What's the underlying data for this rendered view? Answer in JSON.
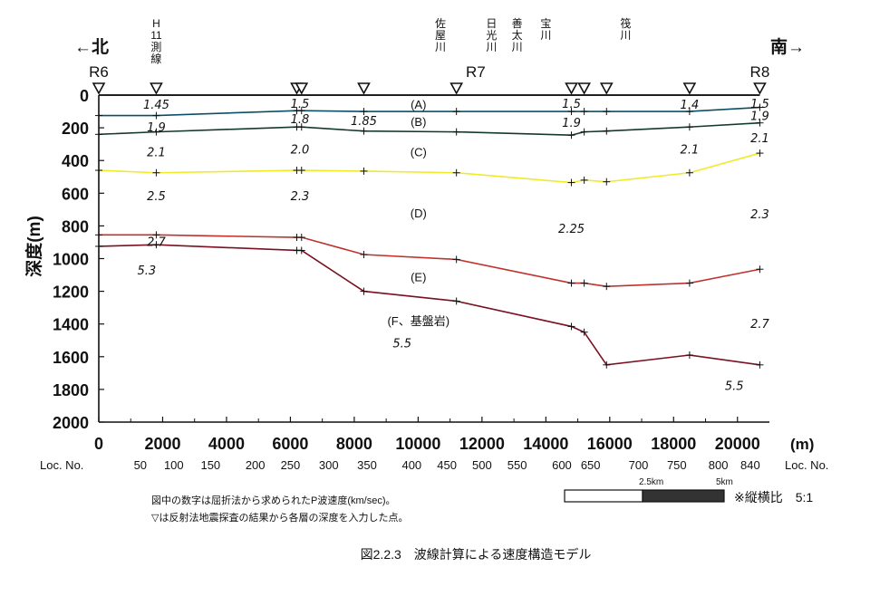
{
  "chart_data": {
    "type": "line",
    "title": "図2.2.3　波線計算による速度構造モデル",
    "ylabel": "深度(m)",
    "x_unit_label": "(m)",
    "xlim": [
      0,
      21000
    ],
    "ylim": [
      0,
      2000
    ],
    "y_inverted": true,
    "x_ticks": [
      0,
      2000,
      4000,
      6000,
      8000,
      10000,
      12000,
      14000,
      16000,
      18000,
      20000
    ],
    "y_ticks": [
      0,
      200,
      400,
      600,
      800,
      1000,
      1200,
      1400,
      1600,
      1800,
      2000
    ],
    "direction_left": "←北",
    "direction_right": "南→",
    "loc_label": "Loc. No.",
    "loc_ticks": [
      {
        "x": 1300,
        "label": "50"
      },
      {
        "x": 2350,
        "label": "100"
      },
      {
        "x": 3500,
        "label": "150"
      },
      {
        "x": 4900,
        "label": "200"
      },
      {
        "x": 6000,
        "label": "250"
      },
      {
        "x": 7200,
        "label": "300"
      },
      {
        "x": 8400,
        "label": "350"
      },
      {
        "x": 9800,
        "label": "400"
      },
      {
        "x": 10900,
        "label": "450"
      },
      {
        "x": 12000,
        "label": "500"
      },
      {
        "x": 13100,
        "label": "550"
      },
      {
        "x": 14500,
        "label": "600"
      },
      {
        "x": 15400,
        "label": "650"
      },
      {
        "x": 16900,
        "label": "700"
      },
      {
        "x": 18100,
        "label": "750"
      },
      {
        "x": 19400,
        "label": "800"
      },
      {
        "x": 20400,
        "label": "840"
      }
    ],
    "stations": [
      {
        "x": 0,
        "label": "R6"
      },
      {
        "x": 11800,
        "label": "R7"
      },
      {
        "x": 20700,
        "label": "R8"
      }
    ],
    "crossings": [
      {
        "x": 1800,
        "label": "H\n11\n測\n線"
      },
      {
        "x": 10700,
        "label": "佐\n屋\n川"
      },
      {
        "x": 12300,
        "label": "日\n光\n川"
      },
      {
        "x": 13100,
        "label": "善\n太\n川"
      },
      {
        "x": 14000,
        "label": "宝\n川"
      },
      {
        "x": 16500,
        "label": "筏\n川"
      }
    ],
    "reflection_points_x": [
      0,
      1800,
      6200,
      6350,
      8300,
      11200,
      14800,
      15200,
      15900,
      18500,
      20700
    ],
    "layer_labels": [
      {
        "x": 9500,
        "y": 55,
        "label": "(A)"
      },
      {
        "x": 9500,
        "y": 160,
        "label": "(B)"
      },
      {
        "x": 9500,
        "y": 345,
        "label": "(C)"
      },
      {
        "x": 9500,
        "y": 720,
        "label": "(D)"
      },
      {
        "x": 9500,
        "y": 1110,
        "label": "(E)"
      },
      {
        "x": 9500,
        "y": 1380,
        "label": "(F、基盤岩)"
      }
    ],
    "velocities": [
      {
        "x": 1800,
        "y": 55,
        "label": "1.45"
      },
      {
        "x": 6300,
        "y": 50,
        "label": "1.5"
      },
      {
        "x": 14800,
        "y": 50,
        "label": "1.5"
      },
      {
        "x": 18500,
        "y": 55,
        "label": "1.4"
      },
      {
        "x": 20700,
        "y": 50,
        "label": "1.5"
      },
      {
        "x": 6300,
        "y": 145,
        "label": "1.8"
      },
      {
        "x": 8300,
        "y": 155,
        "label": "1.85"
      },
      {
        "x": 1800,
        "y": 195,
        "label": "1.9"
      },
      {
        "x": 14800,
        "y": 165,
        "label": "1.9"
      },
      {
        "x": 20700,
        "y": 125,
        "label": "1.9"
      },
      {
        "x": 1800,
        "y": 345,
        "label": "2.1"
      },
      {
        "x": 6300,
        "y": 330,
        "label": "2.0"
      },
      {
        "x": 18500,
        "y": 330,
        "label": "2.1"
      },
      {
        "x": 20700,
        "y": 260,
        "label": "2.1"
      },
      {
        "x": 1800,
        "y": 615,
        "label": "2.5"
      },
      {
        "x": 6300,
        "y": 615,
        "label": "2.3"
      },
      {
        "x": 14800,
        "y": 815,
        "label": "2.25"
      },
      {
        "x": 20700,
        "y": 725,
        "label": "2.3"
      },
      {
        "x": 1800,
        "y": 895,
        "label": "2.7"
      },
      {
        "x": 1500,
        "y": 1070,
        "label": "5.3"
      },
      {
        "x": 9500,
        "y": 1515,
        "label": "5.5"
      },
      {
        "x": 20700,
        "y": 1395,
        "label": "2.7"
      },
      {
        "x": 19900,
        "y": 1775,
        "label": "5.5"
      }
    ],
    "series": [
      {
        "color": "#000000",
        "x": [
          0,
          1800,
          6200,
          6350,
          8300,
          11200,
          14800,
          15200,
          15900,
          18500,
          20700
        ],
        "values": [
          0,
          0,
          0,
          0,
          0,
          0,
          0,
          0,
          0,
          0,
          0
        ]
      },
      {
        "color": "#0b4e68",
        "x": [
          0,
          1800,
          6200,
          6350,
          8300,
          11200,
          14800,
          15200,
          15900,
          18500,
          20700
        ],
        "values": [
          125,
          125,
          95,
          95,
          100,
          100,
          100,
          100,
          100,
          100,
          75
        ]
      },
      {
        "color": "#143a2c",
        "x": [
          0,
          1800,
          6200,
          6350,
          8300,
          11200,
          14800,
          15200,
          15900,
          18500,
          20700
        ],
        "values": [
          240,
          225,
          195,
          195,
          220,
          225,
          245,
          225,
          220,
          195,
          170
        ]
      },
      {
        "color": "#f0ea2a",
        "x": [
          0,
          1800,
          6200,
          6350,
          8300,
          11200,
          14800,
          15200,
          15900,
          18500,
          20700
        ],
        "values": [
          460,
          475,
          460,
          460,
          465,
          475,
          535,
          520,
          530,
          475,
          355
        ]
      },
      {
        "color": "#c0322e",
        "x": [
          0,
          1800,
          6200,
          6350,
          8300,
          11200,
          14800,
          15200,
          15900,
          18500,
          20700
        ],
        "values": [
          855,
          855,
          870,
          870,
          975,
          1005,
          1150,
          1150,
          1170,
          1150,
          1065
        ]
      },
      {
        "color": "#7a1020",
        "x": [
          0,
          1800,
          6200,
          6350,
          8300,
          11200,
          14800,
          15200,
          15900,
          18500,
          20700
        ],
        "values": [
          925,
          915,
          950,
          950,
          1200,
          1260,
          1415,
          1450,
          1650,
          1590,
          1650
        ]
      }
    ],
    "notes": [
      "図中の数字は屈折法から求められたP波速度(km/sec)。",
      "▽は反射法地震探査の結果から各層の深度を入力した点。"
    ],
    "scale_bar": {
      "labels": [
        "2.5km",
        "5km"
      ],
      "ratio_text": "※縦横比　5:1"
    }
  }
}
